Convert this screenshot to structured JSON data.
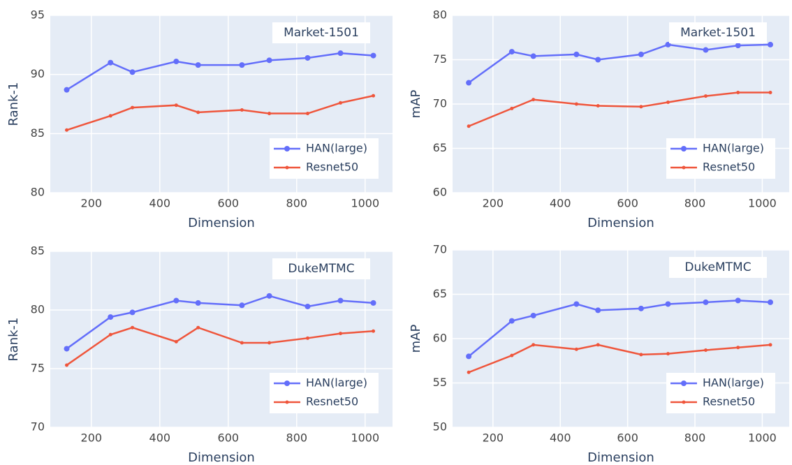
{
  "chart_data": [
    {
      "type": "line",
      "annotation": "Market-1501",
      "xlabel": "Dimension",
      "ylabel": "Rank-1",
      "x": [
        128,
        256,
        320,
        448,
        512,
        640,
        720,
        832,
        928,
        1024
      ],
      "series": [
        {
          "name": "HAN(large)",
          "color": "#636efa",
          "values": [
            88.7,
            91.0,
            90.2,
            91.1,
            90.8,
            90.8,
            91.2,
            91.4,
            91.8,
            91.6
          ]
        },
        {
          "name": "Resnet50",
          "color": "#ef553b",
          "values": [
            85.3,
            86.5,
            87.2,
            87.4,
            86.8,
            87.0,
            86.7,
            86.7,
            87.6,
            88.2
          ]
        }
      ],
      "xlim": [
        80,
        1080
      ],
      "xticks": [
        200,
        400,
        600,
        800,
        1000
      ],
      "ylim": [
        80,
        95
      ],
      "yticks": [
        80,
        85,
        90,
        95
      ],
      "grid": true,
      "legend": "lower right"
    },
    {
      "type": "line",
      "annotation": "Market-1501",
      "xlabel": "Dimension",
      "ylabel": "mAP",
      "x": [
        128,
        256,
        320,
        448,
        512,
        640,
        720,
        832,
        928,
        1024
      ],
      "series": [
        {
          "name": "HAN(large)",
          "color": "#636efa",
          "values": [
            72.4,
            75.9,
            75.4,
            75.6,
            75.0,
            75.6,
            76.7,
            76.1,
            76.6,
            76.7
          ]
        },
        {
          "name": "Resnet50",
          "color": "#ef553b",
          "values": [
            67.5,
            69.5,
            70.5,
            70.0,
            69.8,
            69.7,
            70.2,
            70.9,
            71.3,
            71.3
          ]
        }
      ],
      "xlim": [
        80,
        1080
      ],
      "xticks": [
        200,
        400,
        600,
        800,
        1000
      ],
      "ylim": [
        60,
        80
      ],
      "yticks": [
        60,
        65,
        70,
        75,
        80
      ],
      "grid": true,
      "legend": "lower right"
    },
    {
      "type": "line",
      "annotation": "DukeMTMC",
      "xlabel": "Dimension",
      "ylabel": "Rank-1",
      "x": [
        128,
        256,
        320,
        448,
        512,
        640,
        720,
        832,
        928,
        1024
      ],
      "series": [
        {
          "name": "HAN(large)",
          "color": "#636efa",
          "values": [
            76.7,
            79.4,
            79.8,
            80.8,
            80.6,
            80.4,
            81.2,
            80.3,
            80.8,
            80.6
          ]
        },
        {
          "name": "Resnet50",
          "color": "#ef553b",
          "values": [
            75.3,
            77.9,
            78.5,
            77.3,
            78.5,
            77.2,
            77.2,
            77.6,
            78.0,
            78.2
          ]
        }
      ],
      "xlim": [
        80,
        1080
      ],
      "xticks": [
        200,
        400,
        600,
        800,
        1000
      ],
      "ylim": [
        70,
        85
      ],
      "yticks": [
        70,
        75,
        80,
        85
      ],
      "grid": true,
      "legend": "lower right"
    },
    {
      "type": "line",
      "annotation": "DukeMTMC",
      "xlabel": "Dimension",
      "ylabel": "mAP",
      "x": [
        128,
        256,
        320,
        448,
        512,
        640,
        720,
        832,
        928,
        1024
      ],
      "series": [
        {
          "name": "HAN(large)",
          "color": "#636efa",
          "values": [
            58.0,
            62.0,
            62.6,
            63.9,
            63.2,
            63.4,
            63.9,
            64.1,
            64.3,
            64.1
          ]
        },
        {
          "name": "Resnet50",
          "color": "#ef553b",
          "values": [
            56.2,
            58.1,
            59.3,
            58.8,
            59.3,
            58.2,
            58.3,
            58.7,
            59.0,
            59.3
          ]
        }
      ],
      "xlim": [
        80,
        1080
      ],
      "xticks": [
        200,
        400,
        600,
        800,
        1000
      ],
      "ylim": [
        50,
        70
      ],
      "yticks": [
        50,
        55,
        60,
        65,
        70
      ],
      "grid": true,
      "legend": "lower right"
    }
  ]
}
